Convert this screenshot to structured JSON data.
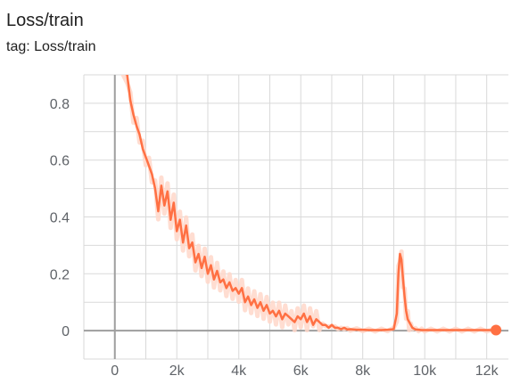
{
  "header": {
    "title": "Loss/train",
    "tag": "tag: Loss/train"
  },
  "colors": {
    "line": "#ff7043",
    "band": "#ffd7c9",
    "grid": "#d9d9d9",
    "axis": "#9e9e9e",
    "tick_text": "#5f6368",
    "background": "#ffffff"
  },
  "chart_data": {
    "type": "line",
    "title": "Loss/train",
    "subtitle": "tag: Loss/train",
    "xlabel": "",
    "ylabel": "",
    "xlim": [
      -1000,
      12700
    ],
    "ylim": [
      -0.1,
      0.9
    ],
    "grid": true,
    "legend": "none",
    "x_ticks": [
      0,
      2000,
      4000,
      6000,
      8000,
      10000,
      12000
    ],
    "x_tick_labels": [
      "0",
      "2k",
      "4k",
      "6k",
      "8k",
      "10k",
      "12k"
    ],
    "y_ticks": [
      0,
      0.2,
      0.4,
      0.6,
      0.8
    ],
    "y_tick_labels": [
      "0",
      "0.2",
      "0.4",
      "0.6",
      "0.8"
    ],
    "series": [
      {
        "x": [
          0,
          400,
          500,
          600,
          700,
          800,
          900,
          1000,
          1100,
          1200,
          1300,
          1400,
          1500,
          1600,
          1700,
          1800,
          1900,
          2000,
          2100,
          2200,
          2300,
          2400,
          2500,
          2600,
          2700,
          2800,
          2900,
          3000,
          3100,
          3200,
          3300,
          3400,
          3500,
          3600,
          3700,
          3800,
          3900,
          4000,
          4100,
          4200,
          4300,
          4400,
          4500,
          4600,
          4700,
          4800,
          4900,
          5000,
          5100,
          5200,
          5300,
          5400,
          5500,
          5600,
          5700,
          5800,
          5900,
          6000,
          6100,
          6200,
          6300,
          6400,
          6500,
          6600,
          6700,
          6800,
          6900,
          7000,
          7100,
          7200,
          7300,
          7400,
          7500,
          7600,
          7800,
          8000,
          8200,
          8400,
          8600,
          8800,
          9000,
          9100,
          9150,
          9200,
          9250,
          9300,
          9350,
          9400,
          9450,
          9500,
          9550,
          9600,
          9700,
          9800,
          9900,
          10000,
          10200,
          10400,
          10600,
          10800,
          11000,
          11200,
          11400,
          11600,
          11800,
          12000,
          12300
        ],
        "y": [
          0.93,
          0.9,
          0.81,
          0.76,
          0.72,
          0.69,
          0.64,
          0.61,
          0.58,
          0.55,
          0.5,
          0.42,
          0.51,
          0.44,
          0.49,
          0.39,
          0.45,
          0.35,
          0.39,
          0.31,
          0.37,
          0.29,
          0.31,
          0.24,
          0.27,
          0.22,
          0.26,
          0.2,
          0.23,
          0.18,
          0.21,
          0.17,
          0.18,
          0.15,
          0.17,
          0.14,
          0.15,
          0.13,
          0.15,
          0.1,
          0.12,
          0.09,
          0.11,
          0.08,
          0.1,
          0.07,
          0.09,
          0.06,
          0.07,
          0.05,
          0.07,
          0.04,
          0.06,
          0.05,
          0.04,
          0.03,
          0.05,
          0.04,
          0.06,
          0.03,
          0.05,
          0.02,
          0.04,
          0.03,
          0.02,
          0.02,
          0.01,
          0.02,
          0.01,
          0.01,
          0.005,
          0.01,
          0.004,
          0.005,
          0.003,
          0.003,
          0.002,
          0.002,
          0.002,
          0.003,
          0.005,
          0.06,
          0.2,
          0.27,
          0.25,
          0.18,
          0.12,
          0.07,
          0.04,
          0.03,
          0.02,
          0.01,
          0.004,
          0.003,
          0.002,
          0.002,
          0.002,
          0.002,
          0.002,
          0.002,
          0.002,
          0.002,
          0.002,
          0.002,
          0.002,
          0.002,
          0.002
        ]
      }
    ],
    "endpoint": {
      "x": 12300,
      "y": 0.002
    }
  }
}
